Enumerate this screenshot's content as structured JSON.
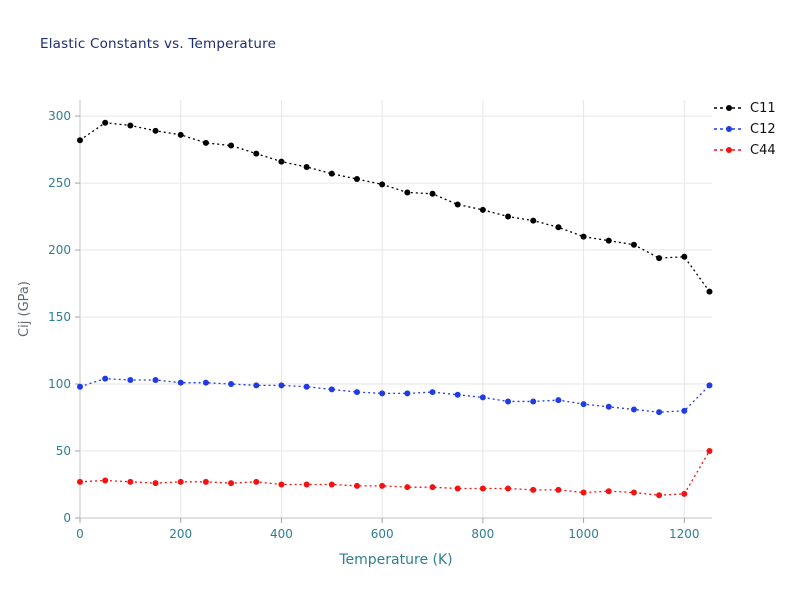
{
  "figure": {
    "title": "Elastic Constants vs. Temperature"
  },
  "colors": {
    "title": "#1f2d6b",
    "tick_label": "#2f7f93",
    "x_axis_label": "#2f7f93",
    "y_axis_label": "#606a72",
    "grid": "#e6e6e6",
    "spine": "#cfcfcf",
    "tick_mark": "#9aa5ad"
  },
  "legend": {
    "items": [
      {
        "label": "C11",
        "color": "#000000"
      },
      {
        "label": "C12",
        "color": "#1f3be6"
      },
      {
        "label": "C44",
        "color": "#f31212"
      }
    ]
  },
  "chart_data": {
    "type": "line",
    "title": "Elastic Constants vs. Temperature",
    "xlabel": "Temperature (K)",
    "ylabel": "Cij (GPa)",
    "grid": true,
    "legend_position": "outside-top-right",
    "line_style": "dotted",
    "marker": "circle",
    "xlim": [
      0,
      1255
    ],
    "ylim": [
      0,
      312
    ],
    "x_ticks": [
      0,
      200,
      400,
      600,
      800,
      1000,
      1200
    ],
    "y_ticks": [
      0,
      50,
      100,
      150,
      200,
      250,
      300
    ],
    "x": [
      0,
      50,
      100,
      150,
      200,
      250,
      300,
      350,
      400,
      450,
      500,
      550,
      600,
      650,
      700,
      750,
      800,
      850,
      900,
      950,
      1000,
      1050,
      1100,
      1150,
      1200,
      1250
    ],
    "series": [
      {
        "name": "C11",
        "color": "#000000",
        "values": [
          282,
          295,
          293,
          289,
          286,
          280,
          278,
          272,
          266,
          262,
          257,
          253,
          249,
          243,
          242,
          234,
          230,
          225,
          222,
          217,
          210,
          207,
          204,
          194,
          195,
          169
        ]
      },
      {
        "name": "C12",
        "color": "#1f3be6",
        "values": [
          98,
          104,
          103,
          103,
          101,
          101,
          100,
          99,
          99,
          98,
          96,
          94,
          93,
          93,
          94,
          92,
          90,
          87,
          87,
          88,
          85,
          83,
          81,
          79,
          80,
          99
        ]
      },
      {
        "name": "C44",
        "color": "#f31212",
        "values": [
          27,
          28,
          27,
          26,
          27,
          27,
          26,
          27,
          25,
          25,
          25,
          24,
          24,
          23,
          23,
          22,
          22,
          22,
          21,
          21,
          19,
          20,
          19,
          17,
          18,
          50
        ]
      }
    ]
  }
}
